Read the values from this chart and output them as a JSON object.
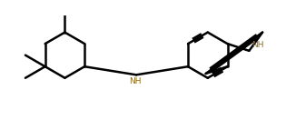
{
  "background": "#ffffff",
  "line_color": "#000000",
  "nh_color": "#8B6914",
  "line_width": 1.8,
  "figsize": [
    3.15,
    1.43
  ],
  "dpi": 100,
  "xlim": [
    0.0,
    3.15
  ],
  "ylim": [
    0.0,
    1.43
  ]
}
